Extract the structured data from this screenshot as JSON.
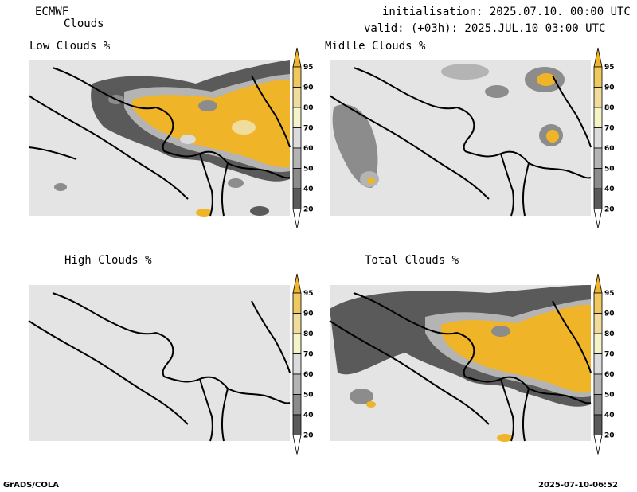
{
  "header": {
    "model": "ECMWF",
    "product": "Clouds",
    "init": "initialisation: 2025.07.10. 00:00 UTC",
    "valid": "valid: (+03h): 2025.JUL.10 03:00 UTC"
  },
  "panels": {
    "low": {
      "title": "Low Clouds %"
    },
    "middle": {
      "title": "Midlle Clouds %"
    },
    "high": {
      "title": "High Clouds %"
    },
    "total": {
      "title": "Total Clouds %"
    }
  },
  "colorbar": {
    "levels": [
      "95",
      "90",
      "80",
      "70",
      "60",
      "50",
      "40",
      "20"
    ],
    "colors": [
      "#f0b428",
      "#f0c860",
      "#f0dc9c",
      "#f4f4c8",
      "#dcdcdc",
      "#b4b4b4",
      "#8c8c8c",
      "#5a5a5a",
      "#ffffff"
    ]
  },
  "map_colors": {
    "background": "#e4e4e4",
    "border": "#000000"
  },
  "footer": {
    "left": "GrADS/COLA",
    "right": "2025-07-10-06:52"
  }
}
